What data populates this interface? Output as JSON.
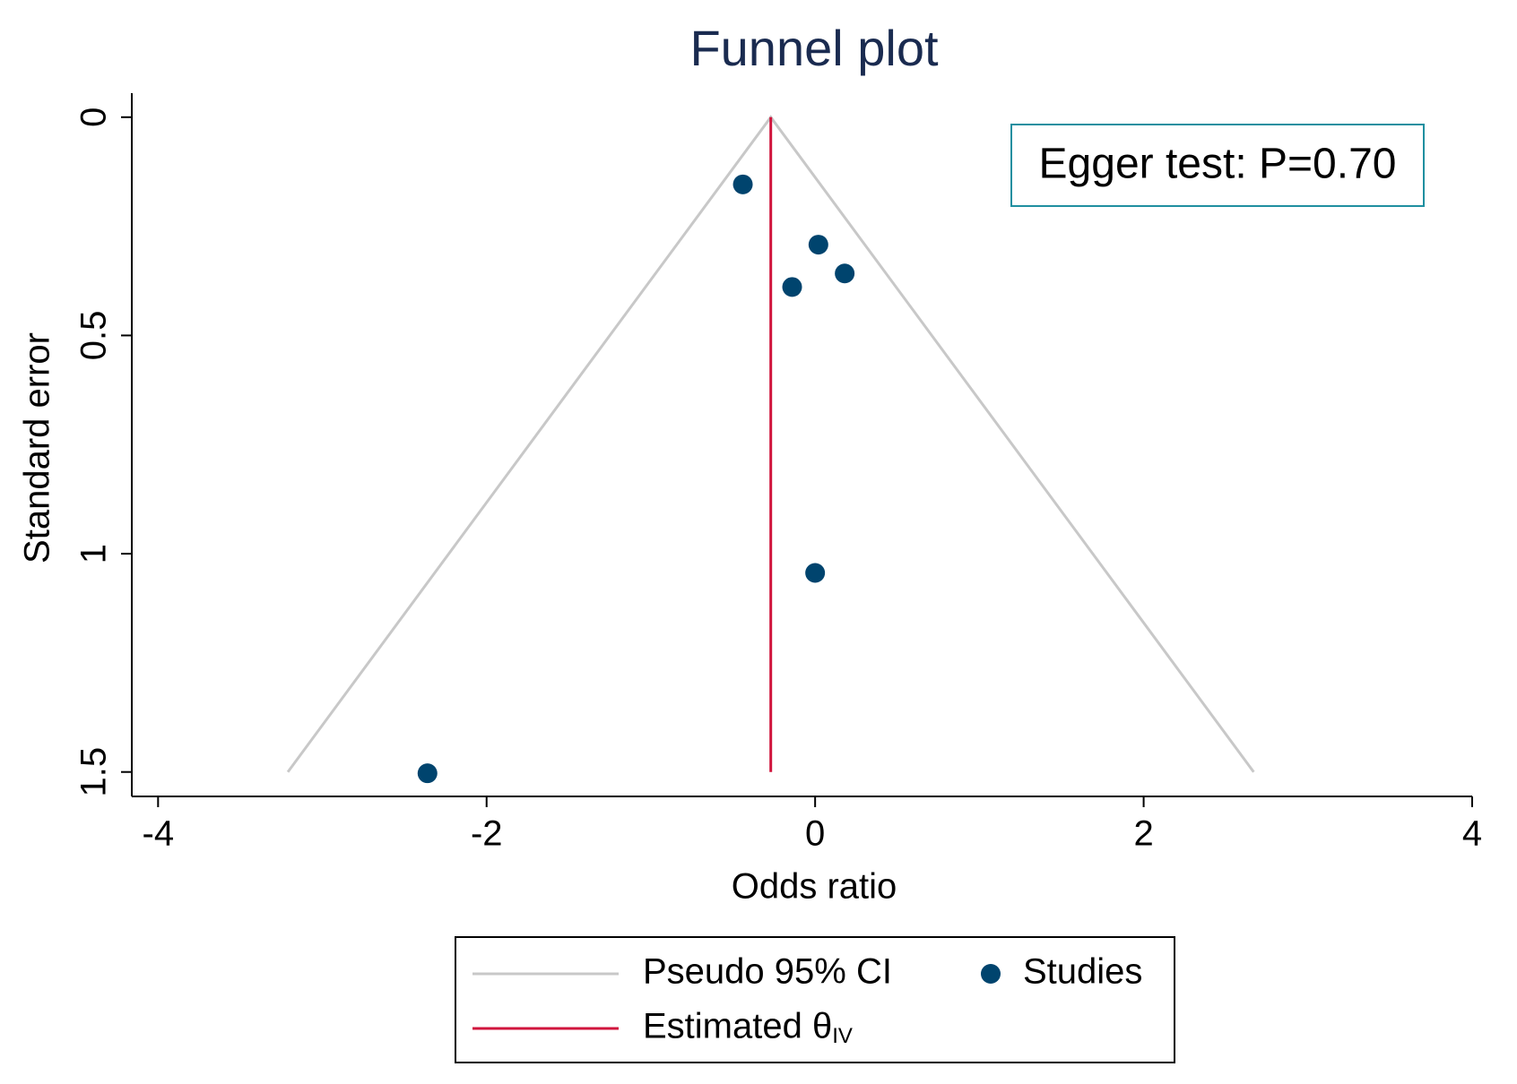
{
  "chart_data": {
    "type": "scatter",
    "title": "Funnel plot",
    "x_label": "Odds ratio",
    "y_label": "Standard error",
    "xlim": [
      -4.16,
      4
    ],
    "xticks": [
      -4,
      -2,
      0,
      2,
      4
    ],
    "ylim": [
      -0.055,
      1.556
    ],
    "yticks": [
      0,
      0.5,
      1,
      1.5
    ],
    "y_reversed": true,
    "lines": [
      {
        "name": "Pseudo 95% CI",
        "color": "#c8c8c8",
        "x": [
          -3.21,
          -0.27,
          2.67
        ],
        "y": [
          1.5,
          0,
          1.5
        ]
      },
      {
        "name": "Estimated θ",
        "subscript": "IV",
        "color": "#d0143c",
        "x": [
          -0.27,
          -0.27
        ],
        "y": [
          0,
          1.5
        ]
      }
    ],
    "series": [
      {
        "name": "Studies",
        "color": "#00446e",
        "x": [
          -0.44,
          0.02,
          0.18,
          -0.14,
          0.0,
          -2.36
        ],
        "values": [
          0.154,
          0.292,
          0.358,
          0.389,
          1.044,
          1.503
        ]
      }
    ],
    "annotation": "Egger test: P=0.70"
  }
}
